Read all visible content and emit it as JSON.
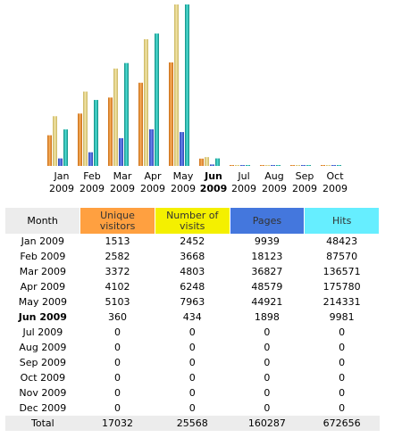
{
  "table": {
    "header": [
      {
        "text": "Month",
        "color": "#ECECEC"
      },
      {
        "text": "Unique visitors",
        "color": "#FFA040"
      },
      {
        "text": "Number of visits",
        "color": "#F4F000"
      },
      {
        "text": "Pages",
        "color": "#4477DD"
      },
      {
        "text": "Hits",
        "color": "#66EEFF"
      }
    ],
    "rows": [
      [
        "Jan 2009",
        1513,
        2452,
        9939,
        48423
      ],
      [
        "Feb 2009",
        2582,
        3668,
        18123,
        87570
      ],
      [
        "Mar 2009",
        3372,
        4803,
        36827,
        136571
      ],
      [
        "Apr 2009",
        4102,
        6248,
        48579,
        175780
      ],
      [
        "May 2009",
        5103,
        7963,
        44921,
        214331
      ],
      [
        "Jun 2009",
        360,
        434,
        1898,
        9981
      ],
      [
        "Jul 2009",
        0,
        0,
        0,
        0
      ],
      [
        "Aug 2009",
        0,
        0,
        0,
        0
      ],
      [
        "Sep 2009",
        0,
        0,
        0,
        0
      ],
      [
        "Oct 2009",
        0,
        0,
        0,
        0
      ],
      [
        "Nov 2009",
        0,
        0,
        0,
        0
      ],
      [
        "Dec 2009",
        0,
        0,
        0,
        0
      ]
    ],
    "total": [
      "Total",
      17032,
      25568,
      160287,
      672656
    ],
    "current_row": 5
  }
}
